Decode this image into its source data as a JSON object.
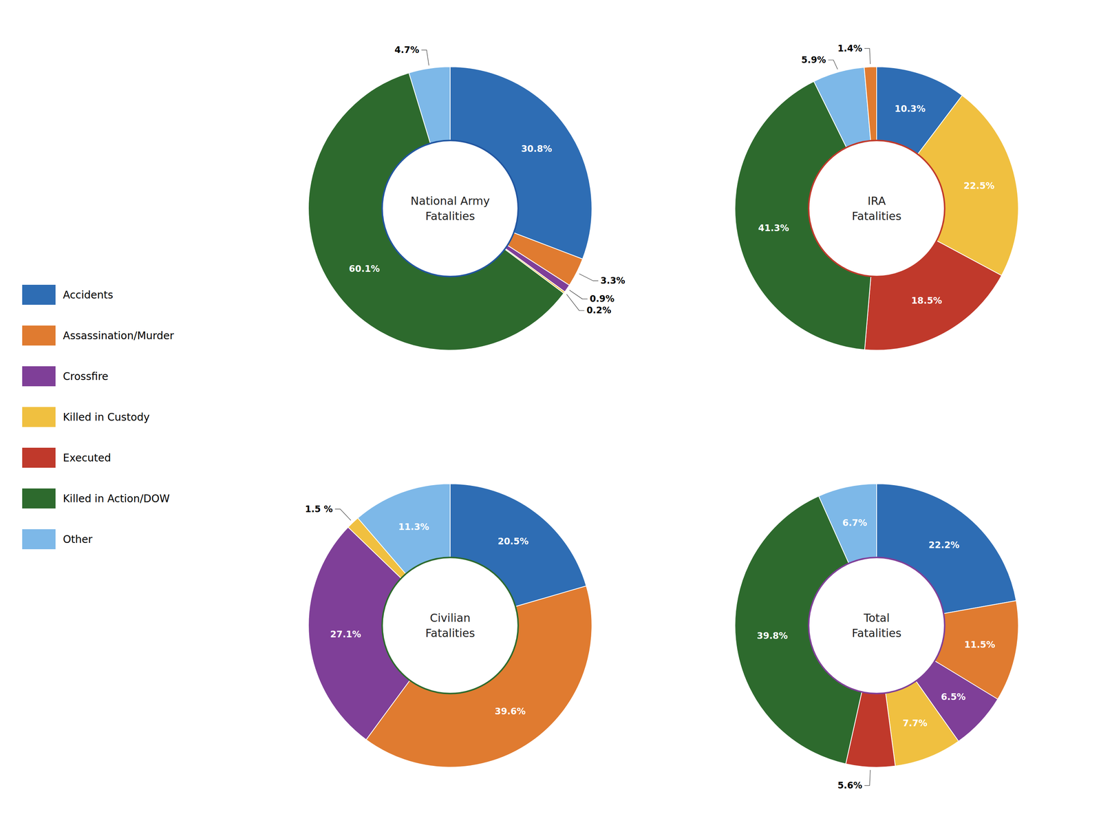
{
  "chart_data": [
    {
      "type": "pie",
      "title": "National Army\nFatalities",
      "color": "#2155a0",
      "categories": [
        "Accidents",
        "Assassination/Murder",
        "Crossfire",
        "Killed in Custody",
        "Killed in Action/DOW",
        "Other"
      ],
      "values": [
        30.8,
        3.3,
        0.9,
        0.2,
        60.1,
        4.7
      ],
      "value_labels": [
        "30.8%",
        "3.3%",
        "0.9%",
        "0.2%",
        "60.1%",
        "4.7%"
      ],
      "colors": [
        "#2e6db4",
        "#e07b30",
        "#7f3f98",
        "#f0c040",
        "#2d6a2d",
        "#7db8e8"
      ],
      "data_labels": true
    },
    {
      "type": "pie",
      "title": "IRA\nFatalities",
      "color": "#c0392b",
      "categories": [
        "Accidents",
        "Killed in Custody",
        "Executed",
        "Killed in Action/DOW",
        "Other",
        "Assassination/Murder"
      ],
      "values": [
        10.3,
        22.5,
        18.5,
        41.3,
        5.9,
        1.4
      ],
      "value_labels": [
        "10.3%",
        "22.5%",
        "18.5%",
        "41.3%",
        "5.9%",
        "1.4%"
      ],
      "colors": [
        "#2e6db4",
        "#f0c040",
        "#c0392b",
        "#2d6a2d",
        "#7db8e8",
        "#e07b30"
      ],
      "data_labels": true
    },
    {
      "type": "pie",
      "title": "Civilian\nFatalities",
      "color": "#2d6a2d",
      "categories": [
        "Accidents",
        "Assassination/Murder",
        "Crossfire",
        "Killed in Custody",
        "Other"
      ],
      "values": [
        20.5,
        39.6,
        27.1,
        1.5,
        11.3
      ],
      "value_labels": [
        "20.5%",
        "39.6%",
        "27.1%",
        "1.5 %",
        "11.3%"
      ],
      "colors": [
        "#2e6db4",
        "#e07b30",
        "#7f3f98",
        "#f0c040",
        "#7db8e8"
      ],
      "data_labels": true
    },
    {
      "type": "pie",
      "title": "Total\nFatalities",
      "color": "#7f3f98",
      "categories": [
        "Accidents",
        "Assassination/Murder",
        "Crossfire",
        "Killed in Custody",
        "Executed",
        "Killed in Action/DOW",
        "Other"
      ],
      "values": [
        22.2,
        11.5,
        6.5,
        7.7,
        5.6,
        39.8,
        6.7
      ],
      "value_labels": [
        "22.2%",
        "11.5%",
        "6.5%",
        "7.7%",
        "5.6%",
        "39.8%",
        "6.7%"
      ],
      "colors": [
        "#2e6db4",
        "#e07b30",
        "#7f3f98",
        "#f0c040",
        "#c0392b",
        "#2d6a2d",
        "#7db8e8"
      ],
      "data_labels": true,
      "legend": "left"
    }
  ]
}
